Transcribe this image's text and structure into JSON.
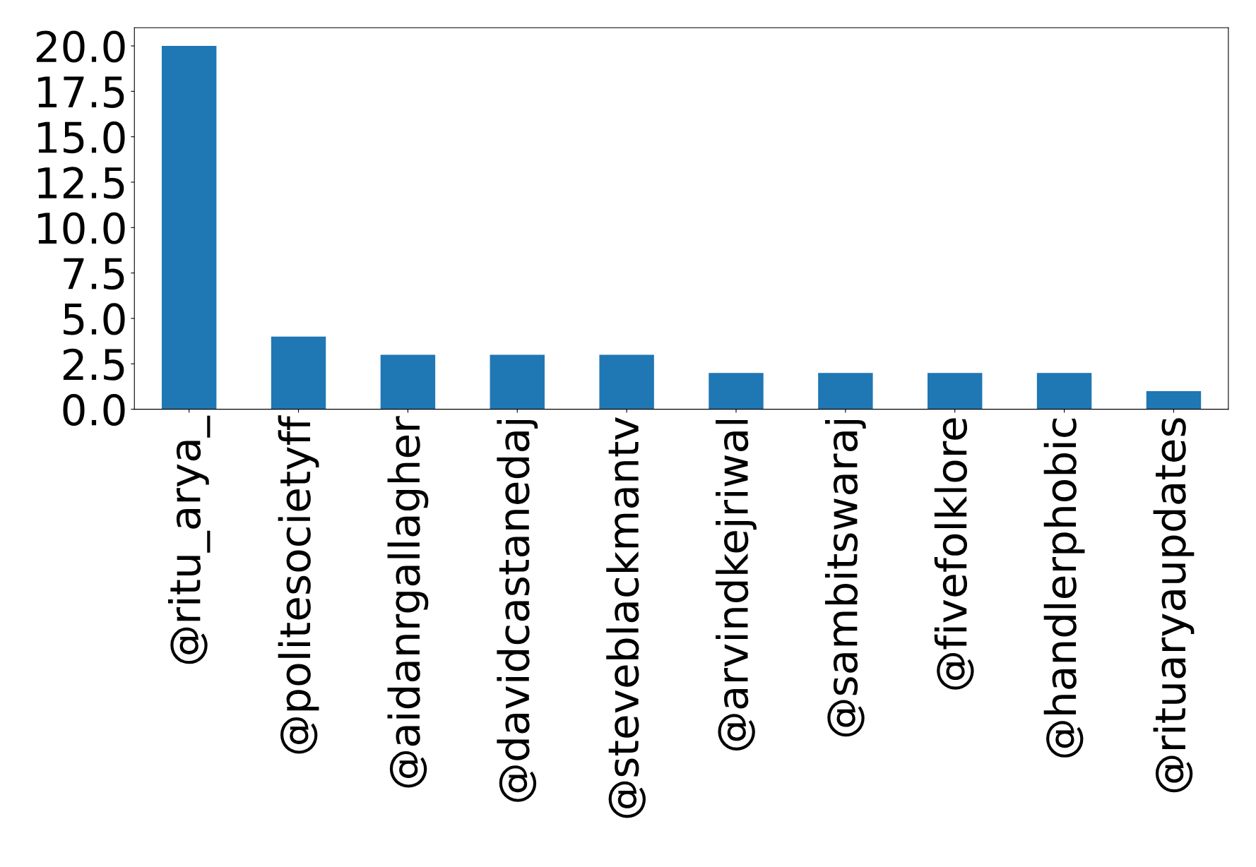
{
  "chart_data": {
    "type": "bar",
    "categories": [
      "@ritu_arya_",
      "@politesocietyff",
      "@aidanrgallagher",
      "@davidcastanedaj",
      "@steveblackmantv",
      "@arvindkejriwal",
      "@sambitswaraj",
      "@fivefolklore",
      "@handlerphobic",
      "@rituaryaupdates"
    ],
    "values": [
      20,
      4,
      3,
      3,
      3,
      2,
      2,
      2,
      2,
      1
    ],
    "color": "#1f77b4",
    "ylim": [
      0,
      21
    ],
    "yticks": [
      {
        "value": 0,
        "label": "0.0"
      },
      {
        "value": 2.5,
        "label": "2.5"
      },
      {
        "value": 5,
        "label": "5.0"
      },
      {
        "value": 7.5,
        "label": "7.5"
      },
      {
        "value": 10,
        "label": "10.0"
      },
      {
        "value": 12.5,
        "label": "12.5"
      },
      {
        "value": 15,
        "label": "15.0"
      },
      {
        "value": 17.5,
        "label": "17.5"
      },
      {
        "value": 20,
        "label": "20.0"
      }
    ],
    "grid": false
  }
}
